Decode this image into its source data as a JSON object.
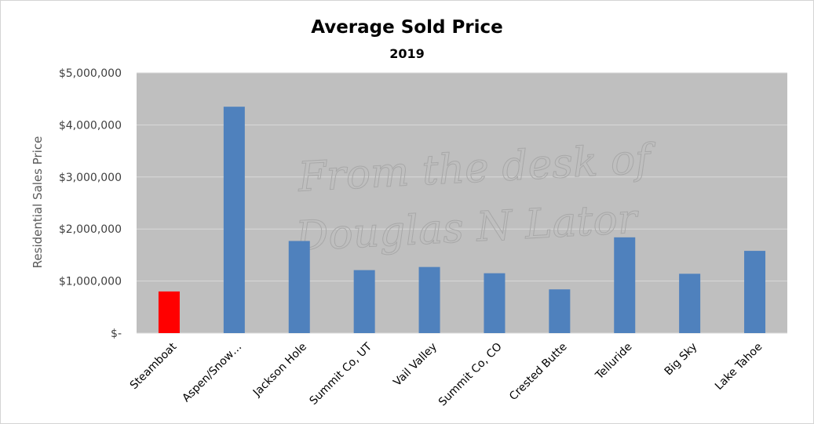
{
  "chart_data": {
    "type": "bar",
    "title": "Average Sold Price",
    "subtitle": "2019",
    "ylabel": "Residential Sales Price",
    "xlabel": "",
    "ylim": [
      0,
      5000000
    ],
    "yticks": [
      {
        "value": 0,
        "label": "$-"
      },
      {
        "value": 1000000,
        "label": "$1,000,000"
      },
      {
        "value": 2000000,
        "label": "$2,000,000"
      },
      {
        "value": 3000000,
        "label": "$3,000,000"
      },
      {
        "value": 4000000,
        "label": "$4,000,000"
      },
      {
        "value": 5000000,
        "label": "$5,000,000"
      }
    ],
    "categories": [
      "Steamboat",
      "Aspen/Snow…",
      "Jackson Hole",
      "Summit Co, UT",
      "Vail Valley",
      "Summit Co, CO",
      "Crested Butte",
      "Telluride",
      "Big Sky",
      "Lake Tahoe"
    ],
    "values": [
      800000,
      4350000,
      1770000,
      1210000,
      1270000,
      1150000,
      840000,
      1840000,
      1140000,
      1580000
    ],
    "highlight_category": "Steamboat",
    "colors": {
      "default": "#4f81bd",
      "highlight": "#ff0000",
      "plot_background": "#bfbfbf",
      "gridline": "#d9d9d9"
    },
    "grid": true,
    "legend": "none",
    "watermark": [
      "From the desk of",
      "Douglas N Lator"
    ]
  }
}
